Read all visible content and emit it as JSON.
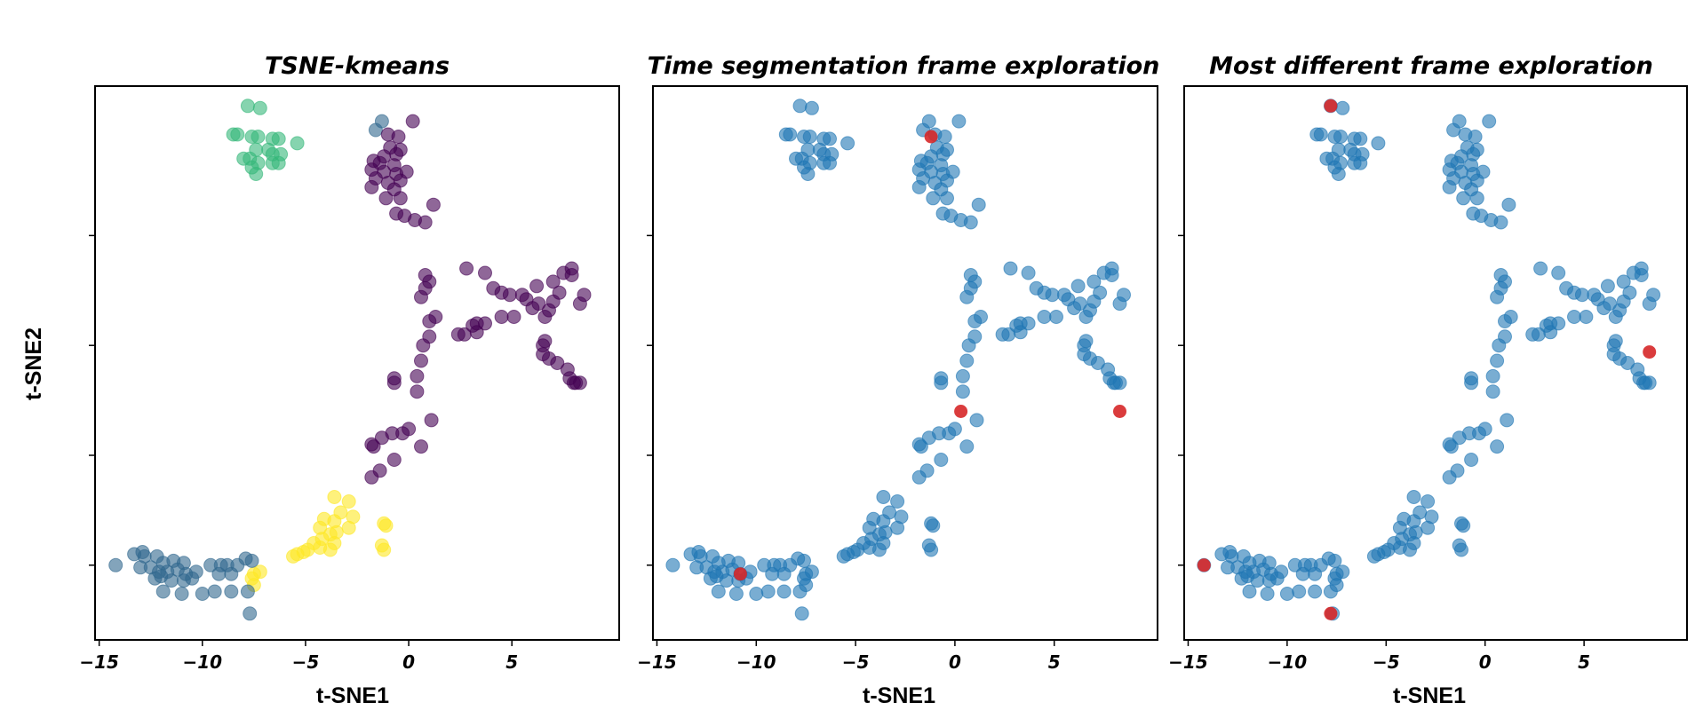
{
  "figure": {
    "ylabel": "t-SNE2",
    "colors": {
      "viridis_purple": "#440154",
      "viridis_slate": "#31688e",
      "viridis_green": "#35b779",
      "viridis_yellow": "#fde725",
      "blue": "#1f77b4",
      "red": "#d62728"
    }
  },
  "chart_data": [
    {
      "type": "scatter",
      "title": "TSNE-kmeans",
      "xlabel": "t-SNE1",
      "ylabel": "t-SNE2",
      "xlim": [
        -15.2,
        10.2
      ],
      "ylim": [
        -6.4,
        18.8
      ],
      "xticks": [
        -15,
        -10,
        -5,
        0,
        5
      ],
      "xtick_labels": [
        "−15",
        "−10",
        "−5",
        "0",
        "5"
      ],
      "yticks": [
        -3,
        2,
        7,
        12
      ],
      "ytick_labels": [
        "",
        "",
        "",
        ""
      ],
      "grid": false,
      "coloring": "kmeans clusters (4)",
      "point_alpha": 0.6
    },
    {
      "type": "scatter",
      "title": "Time segmentation frame exploration",
      "xlabel": "t-SNE1",
      "xlim": [
        -15.2,
        10.2
      ],
      "ylim": [
        -6.4,
        18.8
      ],
      "xticks": [
        -15,
        -10,
        -5,
        0,
        5
      ],
      "xtick_labels": [
        "−15",
        "−10",
        "−5",
        "0",
        "5"
      ],
      "yticks": [
        -3,
        2,
        7,
        12
      ],
      "ytick_labels": [
        "",
        "",
        "",
        ""
      ],
      "grid": false,
      "series": [
        {
          "role": "all frames",
          "color": "#1f77b4"
        },
        {
          "role": "selected frames",
          "color": "#d62728",
          "x": [
            -1.2,
            8.3,
            0.3,
            -10.8
          ],
          "y": [
            16.5,
            4.0,
            4.0,
            -3.4
          ]
        }
      ]
    },
    {
      "type": "scatter",
      "title": "Most different frame exploration",
      "xlabel": "t-SNE1",
      "xlim": [
        -15.2,
        10.2
      ],
      "ylim": [
        -6.4,
        18.8
      ],
      "xticks": [
        -15,
        -10,
        -5,
        0,
        5
      ],
      "xtick_labels": [
        "−15",
        "−10",
        "−5",
        "0",
        "5"
      ],
      "yticks": [
        -3,
        2,
        7,
        12
      ],
      "ytick_labels": [
        "",
        "",
        "",
        ""
      ],
      "grid": false,
      "series": [
        {
          "role": "all frames",
          "color": "#1f77b4"
        },
        {
          "role": "selected frames",
          "color": "#d62728",
          "x": [
            -7.8,
            8.3,
            -14.2,
            -7.8
          ],
          "y": [
            17.9,
            6.7,
            -3.0,
            -5.2
          ]
        }
      ]
    }
  ],
  "points": [
    [
      -7.8,
      17.9,
      2
    ],
    [
      -7.2,
      17.8,
      2
    ],
    [
      -8.5,
      16.6,
      2
    ],
    [
      -8.3,
      16.6,
      2
    ],
    [
      -7.6,
      16.5,
      2
    ],
    [
      -7.3,
      16.5,
      2
    ],
    [
      -6.6,
      16.4,
      2
    ],
    [
      -6.3,
      16.4,
      2
    ],
    [
      -5.4,
      16.2,
      2
    ],
    [
      -7.4,
      15.9,
      2
    ],
    [
      -6.8,
      15.9,
      2
    ],
    [
      -6.6,
      15.7,
      2
    ],
    [
      -6.2,
      15.7,
      2
    ],
    [
      -8.0,
      15.5,
      2
    ],
    [
      -7.7,
      15.5,
      2
    ],
    [
      -7.3,
      15.3,
      2
    ],
    [
      -6.6,
      15.3,
      2
    ],
    [
      -6.3,
      15.3,
      2
    ],
    [
      -7.6,
      15.1,
      2
    ],
    [
      -7.4,
      14.8,
      2
    ],
    [
      -1.6,
      16.8,
      1
    ],
    [
      -1.3,
      17.2,
      1
    ],
    [
      0.2,
      17.2,
      0
    ],
    [
      -1.0,
      16.6,
      0
    ],
    [
      -0.5,
      16.5,
      0
    ],
    [
      -0.9,
      16.0,
      0
    ],
    [
      -0.4,
      15.9,
      0
    ],
    [
      -1.2,
      15.6,
      0
    ],
    [
      -0.6,
      15.7,
      0
    ],
    [
      -1.7,
      15.4,
      0
    ],
    [
      -1.4,
      15.3,
      0
    ],
    [
      -0.7,
      15.2,
      0
    ],
    [
      -1.8,
      15.0,
      0
    ],
    [
      -1.2,
      14.9,
      0
    ],
    [
      -0.6,
      14.8,
      0
    ],
    [
      -0.1,
      14.9,
      0
    ],
    [
      -1.6,
      14.6,
      0
    ],
    [
      -1.0,
      14.4,
      0
    ],
    [
      -0.4,
      14.5,
      0
    ],
    [
      -0.7,
      14.1,
      0
    ],
    [
      -1.8,
      14.2,
      0
    ],
    [
      -0.4,
      13.7,
      0
    ],
    [
      -1.1,
      13.7,
      0
    ],
    [
      1.2,
      13.4,
      0
    ],
    [
      -0.6,
      13.0,
      0
    ],
    [
      0.3,
      12.7,
      0
    ],
    [
      0.8,
      12.6,
      0
    ],
    [
      -0.2,
      12.9,
      0
    ],
    [
      0.8,
      10.2,
      0
    ],
    [
      1.0,
      9.9,
      0
    ],
    [
      0.8,
      9.6,
      0
    ],
    [
      0.6,
      9.2,
      0
    ],
    [
      1.3,
      8.3,
      0
    ],
    [
      1.0,
      8.1,
      0
    ],
    [
      1.0,
      7.4,
      0
    ],
    [
      0.7,
      7.0,
      0
    ],
    [
      0.6,
      6.3,
      0
    ],
    [
      0.4,
      5.6,
      0
    ],
    [
      0.4,
      4.9,
      0
    ],
    [
      2.8,
      10.5,
      0
    ],
    [
      3.7,
      10.3,
      0
    ],
    [
      4.1,
      9.6,
      0
    ],
    [
      4.5,
      9.4,
      0
    ],
    [
      4.9,
      9.3,
      0
    ],
    [
      5.5,
      9.3,
      0
    ],
    [
      5.7,
      9.1,
      0
    ],
    [
      6.0,
      8.7,
      0
    ],
    [
      6.3,
      8.9,
      0
    ],
    [
      6.2,
      9.7,
      0
    ],
    [
      7.0,
      9.9,
      0
    ],
    [
      7.5,
      10.3,
      0
    ],
    [
      7.9,
      10.5,
      0
    ],
    [
      7.9,
      10.2,
      0
    ],
    [
      7.3,
      9.4,
      0
    ],
    [
      7.0,
      9.0,
      0
    ],
    [
      6.8,
      8.6,
      0
    ],
    [
      6.6,
      8.3,
      0
    ],
    [
      8.5,
      9.3,
      0
    ],
    [
      8.3,
      8.9,
      0
    ],
    [
      5.1,
      8.3,
      0
    ],
    [
      4.5,
      8.3,
      0
    ],
    [
      3.7,
      8.0,
      0
    ],
    [
      3.3,
      8.0,
      0
    ],
    [
      3.1,
      7.9,
      0
    ],
    [
      3.3,
      7.6,
      0
    ],
    [
      2.7,
      7.5,
      0
    ],
    [
      2.4,
      7.5,
      0
    ],
    [
      6.6,
      7.2,
      0
    ],
    [
      6.5,
      7.0,
      0
    ],
    [
      6.5,
      6.6,
      0
    ],
    [
      6.8,
      6.4,
      0
    ],
    [
      7.2,
      6.2,
      0
    ],
    [
      7.7,
      5.9,
      0
    ],
    [
      7.8,
      5.5,
      0
    ],
    [
      8.1,
      5.3,
      0
    ],
    [
      8.3,
      5.3,
      0
    ],
    [
      8.0,
      5.3,
      0
    ],
    [
      -0.7,
      5.5,
      0
    ],
    [
      -0.7,
      5.3,
      0
    ],
    [
      1.1,
      3.6,
      0
    ],
    [
      0.0,
      3.2,
      0
    ],
    [
      -0.3,
      3.0,
      0
    ],
    [
      -0.8,
      3.0,
      0
    ],
    [
      -1.3,
      2.8,
      0
    ],
    [
      -1.7,
      2.4,
      0
    ],
    [
      -1.8,
      2.5,
      0
    ],
    [
      0.6,
      2.4,
      0
    ],
    [
      -0.7,
      1.8,
      0
    ],
    [
      -1.4,
      1.3,
      0
    ],
    [
      -1.8,
      1.0,
      0
    ],
    [
      -3.6,
      0.1,
      3
    ],
    [
      -2.9,
      -0.1,
      3
    ],
    [
      -3.3,
      -0.6,
      3
    ],
    [
      -4.1,
      -0.9,
      3
    ],
    [
      -2.7,
      -0.8,
      3
    ],
    [
      -3.6,
      -1.0,
      3
    ],
    [
      -4.3,
      -1.3,
      3
    ],
    [
      -3.5,
      -1.5,
      3
    ],
    [
      -2.9,
      -1.3,
      3
    ],
    [
      -3.8,
      -1.6,
      3
    ],
    [
      -4.2,
      -1.8,
      3
    ],
    [
      -3.6,
      -2.0,
      3
    ],
    [
      -4.6,
      -2.0,
      3
    ],
    [
      -4.3,
      -2.2,
      3
    ],
    [
      -3.8,
      -2.3,
      3
    ],
    [
      -4.9,
      -2.3,
      3
    ],
    [
      -1.2,
      -1.1,
      3
    ],
    [
      -1.1,
      -1.2,
      3
    ],
    [
      -1.3,
      -2.1,
      3
    ],
    [
      -1.2,
      -2.3,
      3
    ],
    [
      -5.1,
      -2.4,
      3
    ],
    [
      -5.4,
      -2.5,
      3
    ],
    [
      -5.6,
      -2.6,
      3
    ],
    [
      -7.2,
      -3.3,
      3
    ],
    [
      -7.5,
      -3.4,
      3
    ],
    [
      -7.6,
      -3.6,
      3
    ],
    [
      -7.5,
      -3.9,
      3
    ],
    [
      -14.2,
      -3.0,
      1
    ],
    [
      -13.3,
      -2.5,
      1
    ],
    [
      -12.8,
      -2.6,
      1
    ],
    [
      -12.9,
      -2.4,
      1
    ],
    [
      -12.2,
      -2.6,
      1
    ],
    [
      -11.9,
      -2.9,
      1
    ],
    [
      -11.4,
      -2.8,
      1
    ],
    [
      -10.9,
      -2.9,
      1
    ],
    [
      -13.0,
      -3.1,
      1
    ],
    [
      -12.5,
      -3.1,
      1
    ],
    [
      -12.1,
      -3.3,
      1
    ],
    [
      -11.7,
      -3.3,
      1
    ],
    [
      -11.2,
      -3.2,
      1
    ],
    [
      -10.3,
      -3.3,
      1
    ],
    [
      -9.6,
      -3.0,
      1
    ],
    [
      -9.1,
      -3.0,
      1
    ],
    [
      -8.8,
      -3.0,
      1
    ],
    [
      -8.3,
      -3.0,
      1
    ],
    [
      -7.9,
      -2.7,
      1
    ],
    [
      -7.6,
      -2.8,
      1
    ],
    [
      -9.2,
      -3.4,
      1
    ],
    [
      -8.6,
      -3.4,
      1
    ],
    [
      -12.3,
      -3.6,
      1
    ],
    [
      -11.5,
      -3.7,
      1
    ],
    [
      -10.8,
      -3.4,
      1
    ],
    [
      -10.5,
      -3.6,
      1
    ],
    [
      -11.9,
      -4.2,
      1
    ],
    [
      -11.0,
      -4.3,
      1
    ],
    [
      -10.0,
      -4.3,
      1
    ],
    [
      -9.4,
      -4.2,
      1
    ],
    [
      -8.6,
      -4.2,
      1
    ],
    [
      -7.8,
      -4.2,
      1
    ],
    [
      -12.0,
      -3.5,
      1
    ],
    [
      -10.9,
      -3.7,
      1
    ],
    [
      -7.7,
      -5.2,
      1
    ]
  ]
}
